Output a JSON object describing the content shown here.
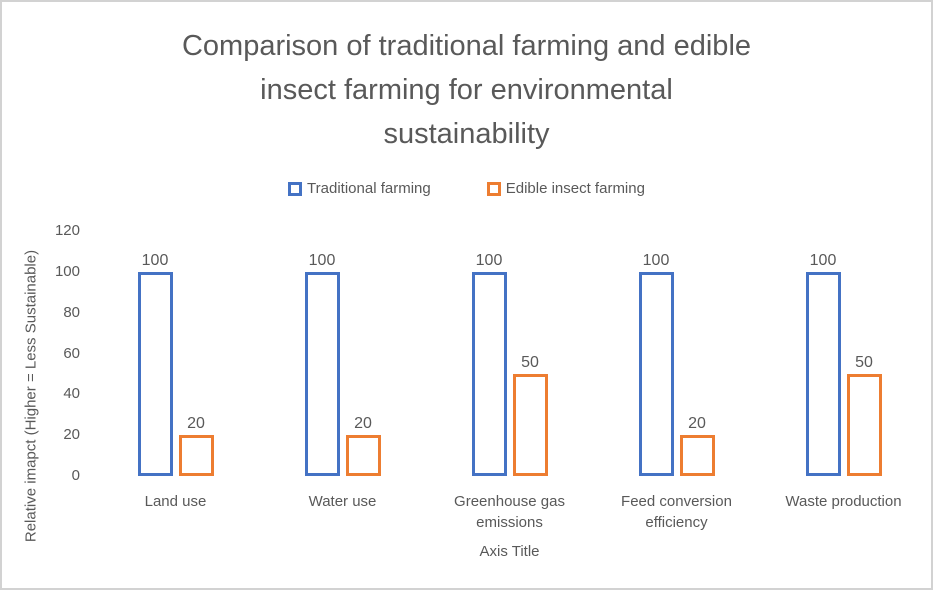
{
  "frame": {
    "background": "#ffffff",
    "border_color": "#d2d2d2",
    "text_color": "#595959"
  },
  "chart_data": {
    "type": "bar",
    "bar_style": "outline",
    "title": "Comparison of traditional farming and edible insect farming for environmental sustainability",
    "title_lines": [
      "Comparison of traditional farming and edible",
      "insect farming for environmental",
      "sustainability"
    ],
    "categories": [
      "Land use",
      "Water use",
      "Greenhouse gas emissions",
      "Feed conversion efficiency",
      "Waste production"
    ],
    "series": [
      {
        "name": "Traditional farming",
        "color": "#4472C4",
        "values": [
          100,
          100,
          100,
          100,
          100
        ]
      },
      {
        "name": "Edible insect farming",
        "color": "#ED7D31",
        "values": [
          20,
          20,
          50,
          20,
          50
        ]
      }
    ],
    "data_labels": true,
    "xlabel": "Axis Title",
    "ylabel": "Relative imapct (Higher = Less Sustainable)",
    "ylim": [
      0,
      120
    ],
    "yticks": [
      120,
      100,
      80,
      60,
      40,
      20,
      0
    ],
    "grid": false,
    "axis_lines": false,
    "legend_position": "top"
  }
}
